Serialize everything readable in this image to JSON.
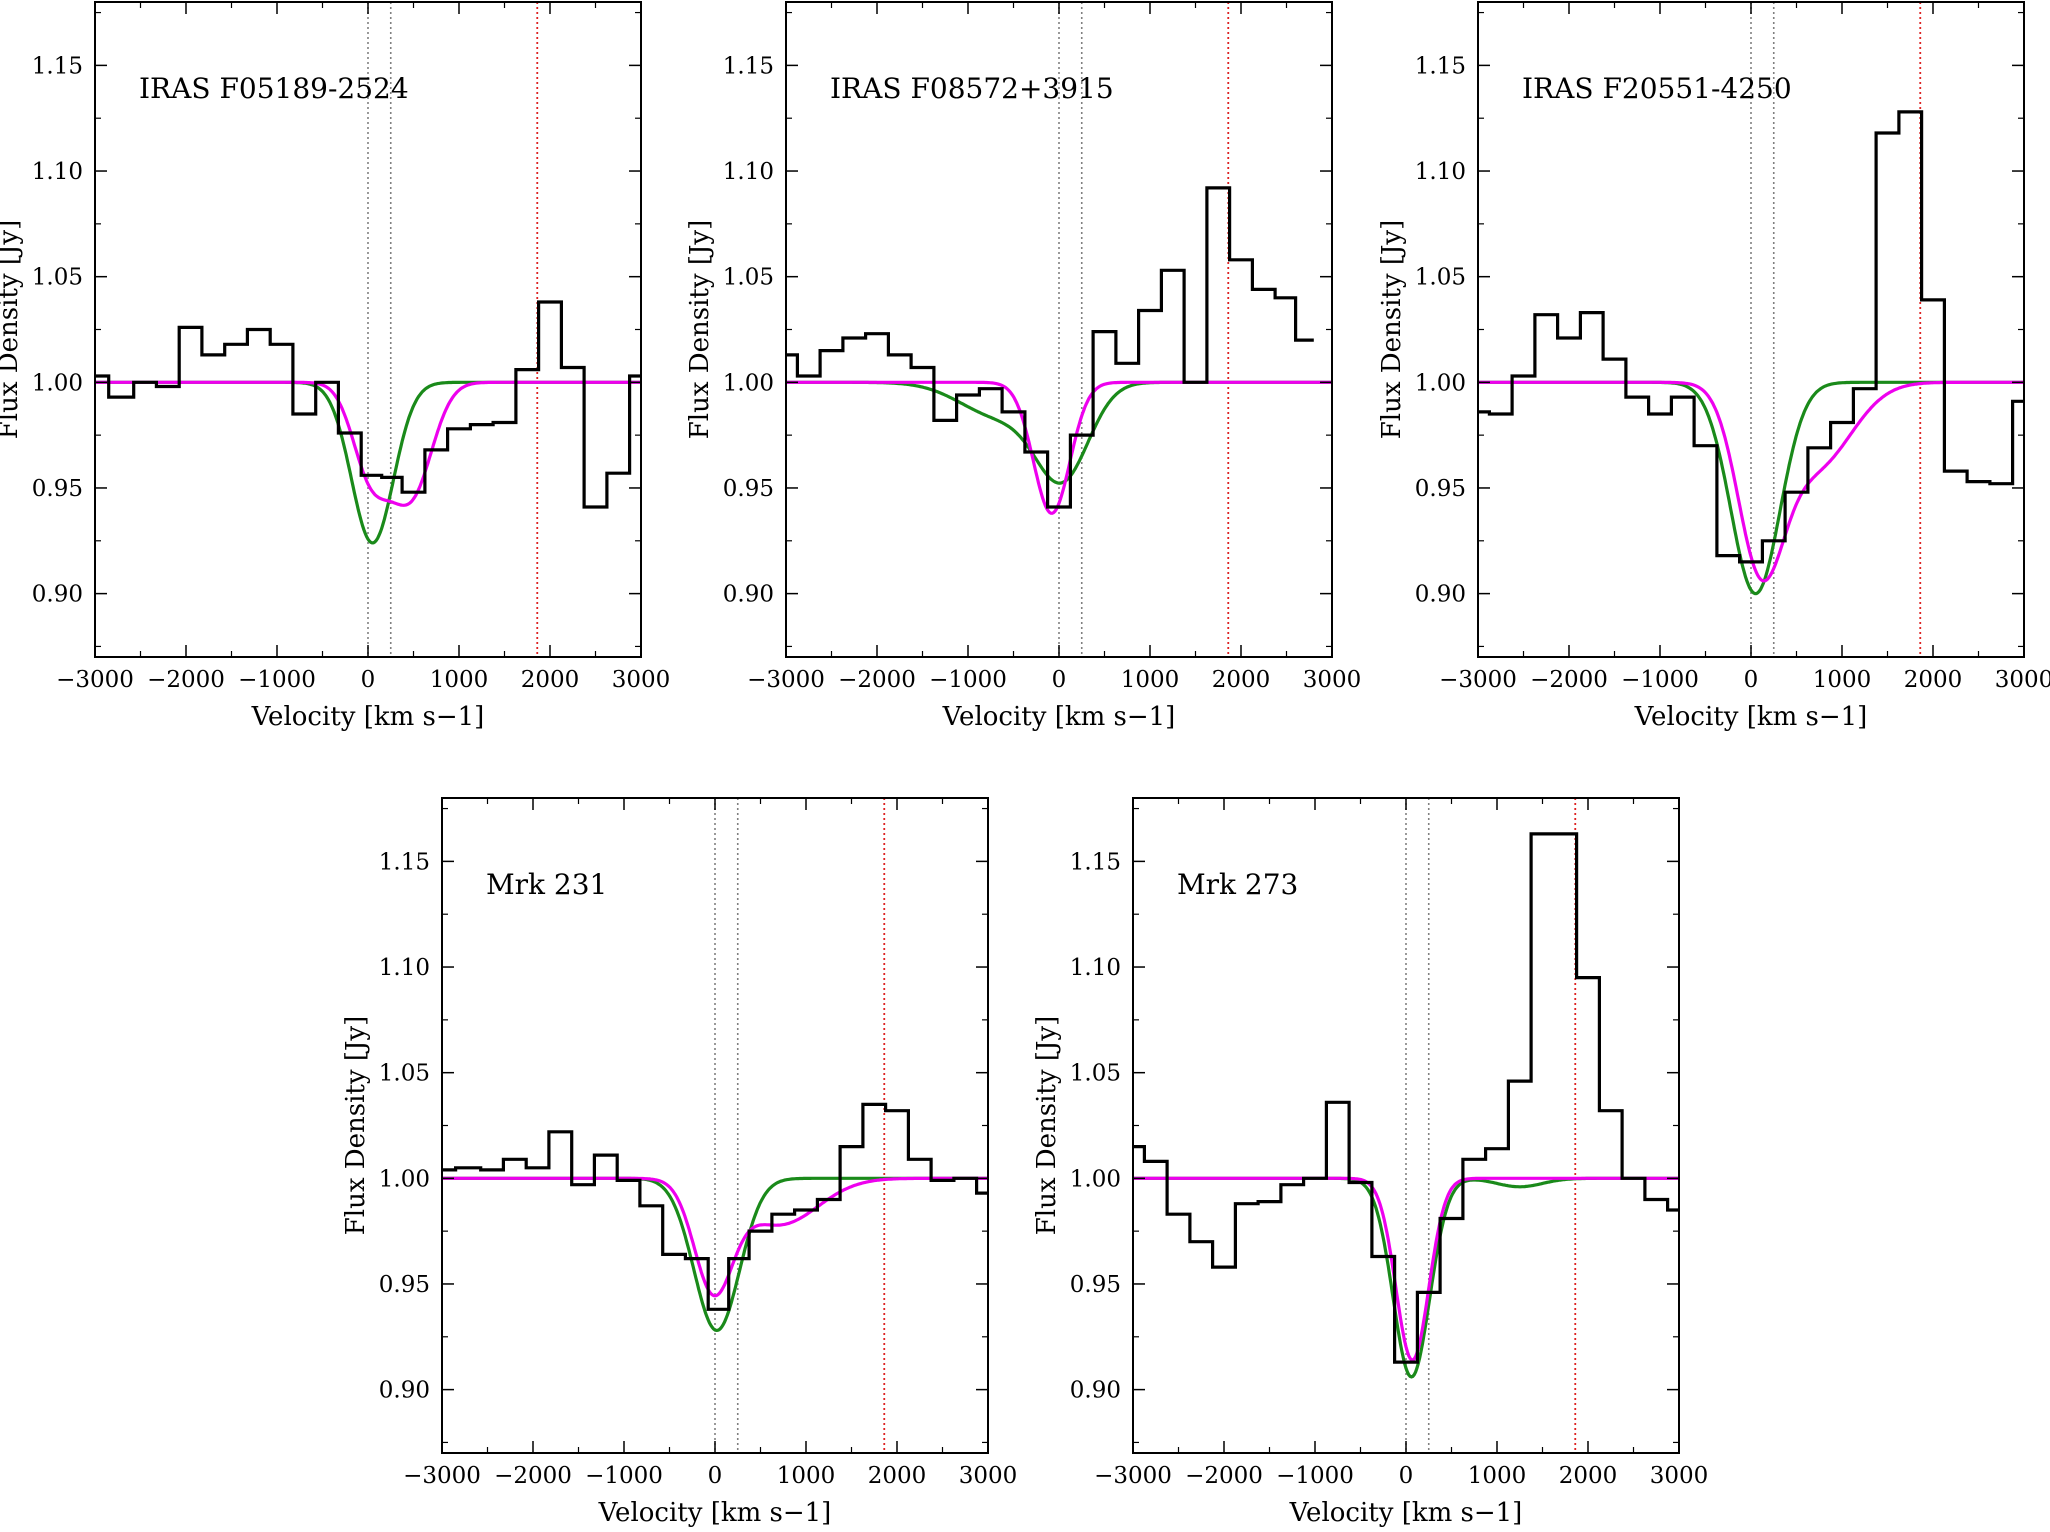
{
  "colors": {
    "data": "#000000",
    "fit_magenta": "#ee00ee",
    "fit_green": "#1a8a1a",
    "ref_gray": "#808080",
    "ref_red": "#dd2222"
  },
  "chart_data": [
    {
      "type": "line",
      "title": "IRAS F05189-2524",
      "xlabel": "Velocity [km s−1]",
      "ylabel": "Flux Density [Jy]",
      "xlim": [
        -3000,
        3000
      ],
      "ylim": [
        0.87,
        1.18
      ],
      "xticks": [
        "−3000",
        "−2000",
        "−1000",
        "0",
        "1000",
        "2000",
        "3000"
      ],
      "yticks": [
        "0.90",
        "0.95",
        "1.00",
        "1.05",
        "1.10",
        "1.15"
      ],
      "vlines_gray": [
        0,
        250
      ],
      "vline_red": 1860,
      "spectrum": {
        "x": [
          -3000,
          -2700,
          -2450,
          -2200,
          -1950,
          -1700,
          -1450,
          -1200,
          -950,
          -700,
          -450,
          -200,
          50,
          250,
          500,
          750,
          1000,
          1250,
          1500,
          1750,
          2000,
          2250,
          2500,
          2750,
          3000
        ],
        "y": [
          1.003,
          0.993,
          1.0,
          0.998,
          1.026,
          1.013,
          1.018,
          1.025,
          1.018,
          0.985,
          1.0,
          0.976,
          0.956,
          0.955,
          0.948,
          0.968,
          0.978,
          0.98,
          0.981,
          1.006,
          1.038,
          1.007,
          0.941,
          0.957,
          1.003
        ]
      },
      "fit_magenta": {
        "components": [
          {
            "amp": 0.042,
            "center": 30,
            "sigma": 200
          },
          {
            "amp": 0.053,
            "center": 470,
            "sigma": 230
          }
        ]
      },
      "fit_green": {
        "components": [
          {
            "amp": 0.076,
            "center": 50,
            "sigma": 230
          }
        ]
      }
    },
    {
      "type": "line",
      "title": "IRAS F08572+3915",
      "xlabel": "Velocity [km s−1]",
      "ylabel": "Flux Density [Jy]",
      "xlim": [
        -3000,
        3000
      ],
      "ylim": [
        0.87,
        1.18
      ],
      "xticks": [
        "−3000",
        "−2000",
        "−1000",
        "0",
        "1000",
        "2000",
        "3000"
      ],
      "yticks": [
        "0.90",
        "0.95",
        "1.00",
        "1.05",
        "1.10",
        "1.15"
      ],
      "vlines_gray": [
        0,
        250
      ],
      "vline_red": 1860,
      "spectrum": {
        "x": [
          -3000,
          -2750,
          -2500,
          -2250,
          -2000,
          -1750,
          -1500,
          -1250,
          -1000,
          -750,
          -500,
          -250,
          0,
          250,
          500,
          750,
          1000,
          1250,
          1500,
          1750,
          2000,
          2250,
          2500,
          2700
        ],
        "y": [
          1.013,
          1.003,
          1.015,
          1.021,
          1.023,
          1.013,
          1.007,
          0.982,
          0.994,
          0.997,
          0.986,
          0.967,
          0.941,
          0.975,
          1.024,
          1.009,
          1.034,
          1.053,
          1.0,
          1.092,
          1.058,
          1.044,
          1.04,
          1.02
        ]
      },
      "fit_magenta": {
        "components": [
          {
            "amp": 0.062,
            "center": -80,
            "sigma": 200
          }
        ]
      },
      "fit_green": {
        "components": [
          {
            "amp": 0.043,
            "center": 40,
            "sigma": 290
          },
          {
            "amp": 0.016,
            "center": -650,
            "sigma": 430
          }
        ]
      }
    },
    {
      "type": "line",
      "title": "IRAS F20551-4250",
      "xlabel": "Velocity [km s−1]",
      "ylabel": "Flux Density [Jy]",
      "xlim": [
        -3000,
        3000
      ],
      "ylim": [
        0.87,
        1.18
      ],
      "xticks": [
        "−3000",
        "−2000",
        "−1000",
        "0",
        "1000",
        "2000",
        "3000"
      ],
      "yticks": [
        "0.90",
        "0.95",
        "1.00",
        "1.05",
        "1.10",
        "1.15"
      ],
      "vlines_gray": [
        0,
        250
      ],
      "vline_red": 1860,
      "spectrum": {
        "x": [
          -3000,
          -2750,
          -2500,
          -2250,
          -2000,
          -1750,
          -1500,
          -1250,
          -1000,
          -750,
          -500,
          -250,
          0,
          250,
          500,
          750,
          1000,
          1250,
          1500,
          1750,
          2000,
          2250,
          2500,
          2750,
          3000
        ],
        "y": [
          0.986,
          0.985,
          1.003,
          1.032,
          1.021,
          1.033,
          1.011,
          0.993,
          0.985,
          0.993,
          0.97,
          0.918,
          0.915,
          0.925,
          0.948,
          0.969,
          0.981,
          0.997,
          1.118,
          1.128,
          1.039,
          0.958,
          0.953,
          0.952,
          0.991
        ]
      },
      "fit_magenta": {
        "components": [
          {
            "amp": 0.08,
            "center": 100,
            "sigma": 250
          },
          {
            "amp": 0.04,
            "center": 700,
            "sigma": 400
          }
        ]
      },
      "fit_green": {
        "components": [
          {
            "amp": 0.1,
            "center": 50,
            "sigma": 270
          }
        ]
      }
    },
    {
      "type": "line",
      "title": "Mrk 231",
      "xlabel": "Velocity [km s−1]",
      "ylabel": "Flux Density [Jy]",
      "xlim": [
        -3000,
        3000
      ],
      "ylim": [
        0.87,
        1.18
      ],
      "xticks": [
        "−3000",
        "−2000",
        "−1000",
        "0",
        "1000",
        "2000",
        "3000"
      ],
      "yticks": [
        "0.90",
        "0.95",
        "1.00",
        "1.05",
        "1.10",
        "1.15"
      ],
      "vlines_gray": [
        0,
        250
      ],
      "vline_red": 1860,
      "spectrum": {
        "x": [
          -3000,
          -2700,
          -2450,
          -2200,
          -1950,
          -1700,
          -1450,
          -1200,
          -950,
          -700,
          -450,
          -200,
          50,
          250,
          500,
          750,
          1000,
          1250,
          1500,
          1750,
          2000,
          2250,
          2500,
          2750,
          3000
        ],
        "y": [
          1.004,
          1.005,
          1.004,
          1.009,
          1.005,
          1.022,
          0.997,
          1.011,
          0.999,
          0.987,
          0.964,
          0.962,
          0.938,
          0.962,
          0.975,
          0.983,
          0.985,
          0.99,
          1.015,
          1.035,
          1.032,
          1.009,
          0.999,
          1.0,
          0.993
        ]
      },
      "fit_magenta": {
        "components": [
          {
            "amp": 0.05,
            "center": -20,
            "sigma": 210
          },
          {
            "amp": 0.022,
            "center": 700,
            "sigma": 430
          }
        ]
      },
      "fit_green": {
        "components": [
          {
            "amp": 0.072,
            "center": 20,
            "sigma": 250
          }
        ]
      }
    },
    {
      "type": "line",
      "title": "Mrk 273",
      "xlabel": "Velocity [km s−1]",
      "ylabel": "Flux Density [Jy]",
      "xlim": [
        -3000,
        3000
      ],
      "ylim": [
        0.87,
        1.18
      ],
      "xticks": [
        "−3000",
        "−2000",
        "−1000",
        "0",
        "1000",
        "2000",
        "3000"
      ],
      "yticks": [
        "0.90",
        "0.95",
        "1.00",
        "1.05",
        "1.10",
        "1.15"
      ],
      "vlines_gray": [
        0,
        250
      ],
      "vline_red": 1860,
      "spectrum": {
        "x": [
          -3000,
          -2750,
          -2500,
          -2250,
          -2000,
          -1750,
          -1500,
          -1250,
          -1000,
          -750,
          -500,
          -250,
          0,
          250,
          500,
          750,
          1000,
          1250,
          1500,
          1750,
          2000,
          2250,
          2500,
          2750,
          3000
        ],
        "y": [
          1.015,
          1.008,
          0.983,
          0.97,
          0.958,
          0.988,
          0.989,
          0.997,
          1.0,
          1.036,
          0.998,
          0.963,
          0.913,
          0.946,
          0.981,
          1.009,
          1.014,
          1.046,
          1.163,
          1.163,
          1.095,
          1.032,
          1.0,
          0.99,
          0.985
        ]
      },
      "fit_magenta": {
        "components": [
          {
            "amp": 0.086,
            "center": 70,
            "sigma": 180
          }
        ]
      },
      "fit_green": {
        "components": [
          {
            "amp": 0.094,
            "center": 60,
            "sigma": 200
          }
        ],
        "wiggle": {
          "amp": 0.004,
          "center": 1250,
          "sigma": 250
        }
      }
    }
  ]
}
